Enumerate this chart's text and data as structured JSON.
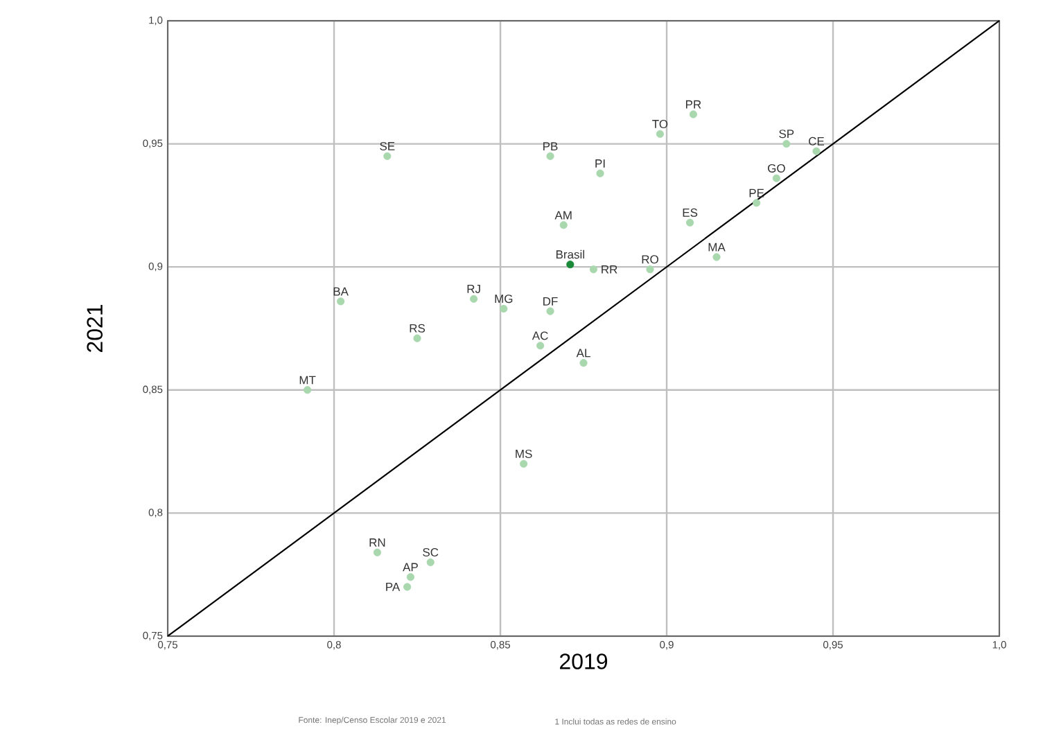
{
  "chart_data": {
    "type": "scatter",
    "xlabel": "2019",
    "ylabel": "2021",
    "xlim": [
      0.75,
      1.0
    ],
    "ylim": [
      0.75,
      1.0
    ],
    "xticks": [
      {
        "value": 0.75,
        "label": "0,75"
      },
      {
        "value": 0.8,
        "label": "0,8"
      },
      {
        "value": 0.85,
        "label": "0,85"
      },
      {
        "value": 0.9,
        "label": "0,9"
      },
      {
        "value": 0.95,
        "label": "0,95"
      },
      {
        "value": 1.0,
        "label": "1,0"
      }
    ],
    "yticks": [
      {
        "value": 0.75,
        "label": "0,75"
      },
      {
        "value": 0.8,
        "label": "0,8"
      },
      {
        "value": 0.85,
        "label": "0,85"
      },
      {
        "value": 0.9,
        "label": "0,9"
      },
      {
        "value": 0.95,
        "label": "0,95"
      },
      {
        "value": 1.0,
        "label": "1,0"
      }
    ],
    "grid": true,
    "marker": "circle",
    "annotations": [
      "Fonte: Inep/Censo Escolar 2019 e 2021",
      "1 Inclui todas as redes de ensino"
    ],
    "series": [
      {
        "type": "line",
        "color": "#000000",
        "marker": "none",
        "x": [
          0.75,
          1.0
        ],
        "values": [
          0.75,
          1.0
        ]
      },
      {
        "name": "Brasil",
        "color": "#1a8a3a",
        "x": [
          0.871
        ],
        "values": [
          0.901
        ]
      },
      {
        "name": "SE",
        "color": "#a9d8ae",
        "x": [
          0.816
        ],
        "values": [
          0.945
        ]
      },
      {
        "name": "PB",
        "color": "#a9d8ae",
        "x": [
          0.865
        ],
        "values": [
          0.945
        ]
      },
      {
        "name": "PI",
        "color": "#a9d8ae",
        "x": [
          0.88
        ],
        "values": [
          0.938
        ]
      },
      {
        "name": "TO",
        "color": "#a9d8ae",
        "x": [
          0.898
        ],
        "values": [
          0.954
        ]
      },
      {
        "name": "PR",
        "color": "#a9d8ae",
        "x": [
          0.908
        ],
        "values": [
          0.962
        ]
      },
      {
        "name": "SP",
        "color": "#a9d8ae",
        "x": [
          0.936
        ],
        "values": [
          0.95
        ]
      },
      {
        "name": "CE",
        "color": "#a9d8ae",
        "x": [
          0.945
        ],
        "values": [
          0.947
        ]
      },
      {
        "name": "GO",
        "color": "#a9d8ae",
        "x": [
          0.933
        ],
        "values": [
          0.936
        ]
      },
      {
        "name": "PE",
        "color": "#a9d8ae",
        "x": [
          0.927
        ],
        "values": [
          0.926
        ]
      },
      {
        "name": "ES",
        "color": "#a9d8ae",
        "x": [
          0.907
        ],
        "values": [
          0.918
        ]
      },
      {
        "name": "AM",
        "color": "#a9d8ae",
        "x": [
          0.869
        ],
        "values": [
          0.917
        ]
      },
      {
        "name": "MA",
        "color": "#a9d8ae",
        "x": [
          0.915
        ],
        "values": [
          0.904
        ]
      },
      {
        "name": "RR",
        "color": "#a9d8ae",
        "x": [
          0.878
        ],
        "values": [
          0.899
        ]
      },
      {
        "name": "RO",
        "color": "#a9d8ae",
        "x": [
          0.895
        ],
        "values": [
          0.899
        ]
      },
      {
        "name": "BA",
        "color": "#a9d8ae",
        "x": [
          0.802
        ],
        "values": [
          0.886
        ]
      },
      {
        "name": "RJ",
        "color": "#a9d8ae",
        "x": [
          0.842
        ],
        "values": [
          0.887
        ]
      },
      {
        "name": "MG",
        "color": "#a9d8ae",
        "x": [
          0.851
        ],
        "values": [
          0.883
        ]
      },
      {
        "name": "DF",
        "color": "#a9d8ae",
        "x": [
          0.865
        ],
        "values": [
          0.882
        ]
      },
      {
        "name": "RS",
        "color": "#a9d8ae",
        "x": [
          0.825
        ],
        "values": [
          0.871
        ]
      },
      {
        "name": "AC",
        "color": "#a9d8ae",
        "x": [
          0.862
        ],
        "values": [
          0.868
        ]
      },
      {
        "name": "AL",
        "color": "#a9d8ae",
        "x": [
          0.875
        ],
        "values": [
          0.861
        ]
      },
      {
        "name": "MT",
        "color": "#a9d8ae",
        "x": [
          0.792
        ],
        "values": [
          0.85
        ]
      },
      {
        "name": "MS",
        "color": "#a9d8ae",
        "x": [
          0.857
        ],
        "values": [
          0.82
        ]
      },
      {
        "name": "RN",
        "color": "#a9d8ae",
        "x": [
          0.813
        ],
        "values": [
          0.784
        ]
      },
      {
        "name": "SC",
        "color": "#a9d8ae",
        "x": [
          0.829
        ],
        "values": [
          0.78
        ]
      },
      {
        "name": "AP",
        "color": "#a9d8ae",
        "x": [
          0.823
        ],
        "values": [
          0.774
        ]
      },
      {
        "name": "PA",
        "color": "#a9d8ae",
        "x": [
          0.822
        ],
        "values": [
          0.77
        ]
      }
    ]
  }
}
